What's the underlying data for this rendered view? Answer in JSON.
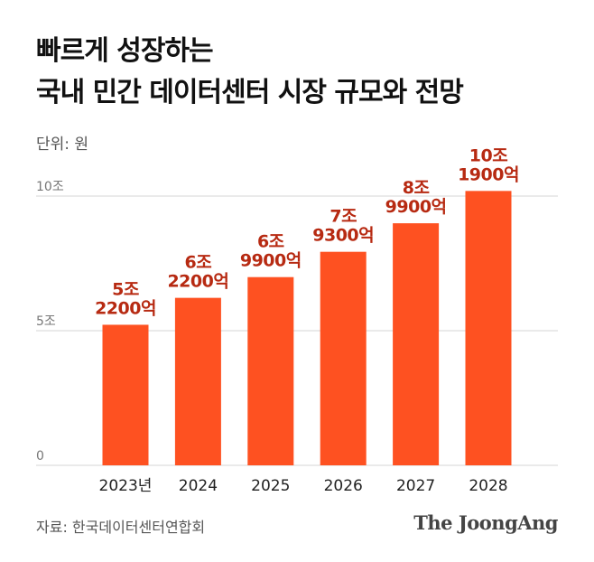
{
  "title": {
    "line1": "빠르게 성장하는",
    "line2": "국내 민간 데이터센터 시장 규모와 전망"
  },
  "unit_label": "단위: 원",
  "source": "자료: 한국데이터센터연합회",
  "brand": "The JoongAng",
  "colors": {
    "bar": "#fe5121",
    "value_label": "#b72a12",
    "grid": "#d5d5d5",
    "axis_text": "#777777"
  },
  "chart_data": {
    "type": "bar",
    "title": "국내 민간 데이터센터 시장 규모와 전망",
    "unit": "원",
    "categories": [
      "2023년",
      "2024",
      "2025",
      "2026",
      "2027",
      "2028"
    ],
    "values": [
      52200,
      62200,
      69900,
      79300,
      89900,
      101900
    ],
    "value_labels": [
      [
        "5조",
        "2200억"
      ],
      [
        "6조",
        "2200억"
      ],
      [
        "6조",
        "9900억"
      ],
      [
        "7조",
        "9300억"
      ],
      [
        "8조",
        "9900억"
      ],
      [
        "10조",
        "1900억"
      ]
    ],
    "y_ticks": [
      {
        "value": 0,
        "label": "0"
      },
      {
        "value": 50000,
        "label": "5조"
      },
      {
        "value": 100000,
        "label": "10조"
      }
    ],
    "ylim": [
      0,
      100000
    ],
    "grid": true
  }
}
